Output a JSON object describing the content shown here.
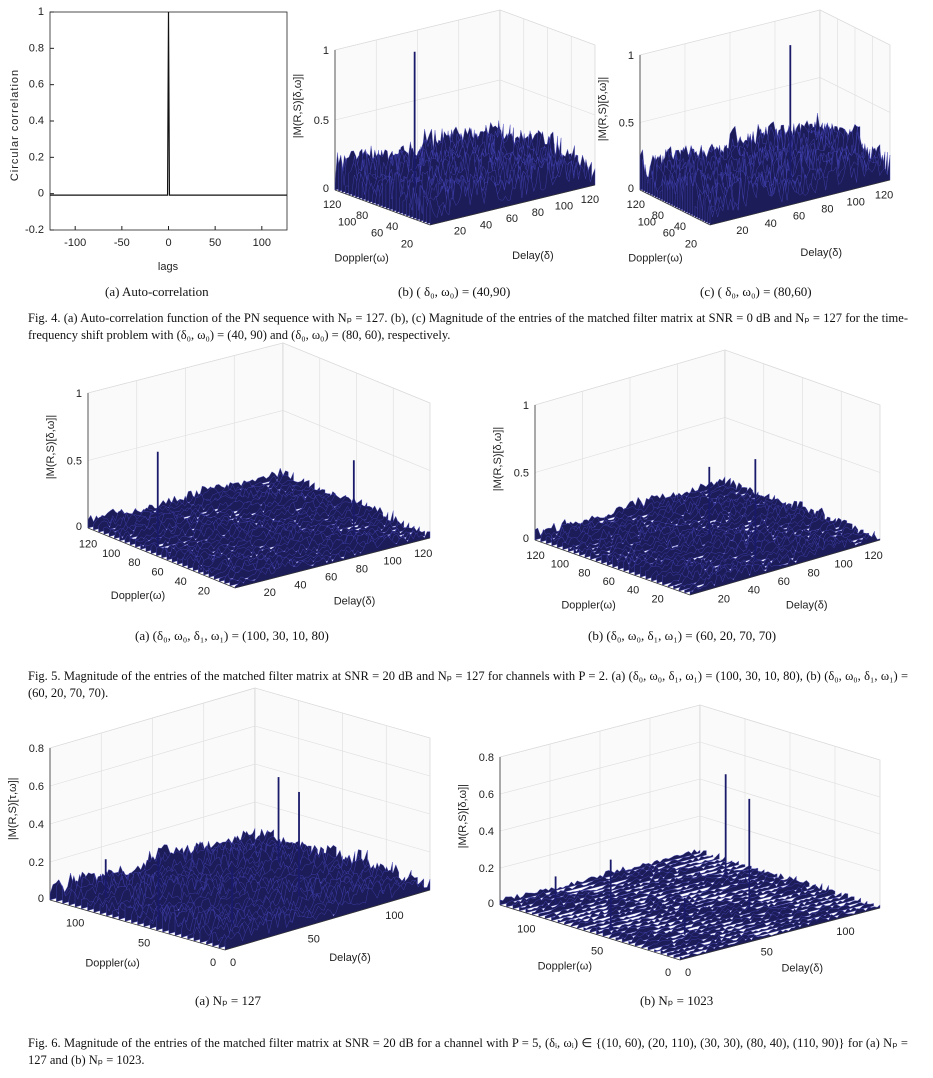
{
  "fig4": {
    "sub_a": "(a) Auto-correlation",
    "sub_b": "(b) ( δ₀, ω₀) = (40,90)",
    "sub_c": "(c) ( δ₀, ω₀) = (80,60)",
    "caption": "Fig. 4.   (a) Auto-correlation function of the PN sequence with Nₚ = 127. (b), (c) Magnitude of the entries of the matched filter matrix at SNR = 0 dB and Nₚ = 127 for the time-frequency shift problem with (δ₀, ω₀) = (40, 90) and (δ₀, ω₀) = (80, 60), respectively."
  },
  "fig5": {
    "sub_a": "(a) (δ₀, ω₀, δ₁, ω₁) = (100, 30, 10, 80)",
    "sub_b": "(b) (δ₀, ω₀, δ₁, ω₁) = (60, 20, 70, 70)",
    "caption": "Fig. 5.  Magnitude of the entries of the matched filter matrix at SNR = 20 dB and Nₚ = 127 for channels with P = 2. (a) (δ₀, ω₀, δ₁, ω₁) = (100, 30, 10, 80), (b) (δ₀, ω₀, δ₁, ω₁) = (60, 20, 70, 70)."
  },
  "fig6": {
    "sub_a": "(a) Nₚ = 127",
    "sub_b": "(b) Nₚ = 1023",
    "caption": "Fig. 6.     Magnitude of the entries of the matched filter matrix at SNR = 20 dB for a channel with P = 5, (δᵢ, ωᵢ) ∈ {(10, 60), (20, 110), (30, 30), (80, 40), (110, 90)} for (a) Nₚ = 127 and (b) Nₚ = 1023."
  },
  "chart_data": [
    {
      "id": "fig4a",
      "type": "line",
      "xlabel": "lags",
      "ylabel": "Circular correlation",
      "xlim": [
        -127,
        127
      ],
      "ylim": [
        -0.2,
        1
      ],
      "xticks": [
        "-100",
        "-50",
        "0",
        "50",
        "100"
      ],
      "xtick_values": [
        -100,
        -50,
        0,
        50,
        100
      ],
      "yticks": [
        "1",
        "0.8",
        "0.6",
        "0.4",
        "0.2",
        "0",
        "-0.2"
      ],
      "ytick_values": [
        1,
        0.8,
        0.6,
        0.4,
        0.2,
        0,
        -0.2
      ],
      "x": [
        -127,
        -1,
        0,
        1,
        127
      ],
      "y": [
        -0.008,
        -0.008,
        1,
        -0.008,
        -0.008
      ]
    },
    {
      "id": "fig4b",
      "type": "surface",
      "xlabel": "Delay(δ)",
      "ylabel": "Doppler(ω)",
      "zlabel": "|M(R,S)[δ,ω]|",
      "zlim": [
        0,
        1
      ],
      "noise_level": 0.3,
      "delay_ticks": [
        "20",
        "40",
        "60",
        "80",
        "100",
        "120"
      ],
      "doppler_ticks": [
        "120",
        "100",
        "80",
        "60",
        "40",
        "20"
      ],
      "z_ticks": [
        "1",
        "0.5",
        "0"
      ],
      "peaks": [
        {
          "delay": 40,
          "doppler": 90,
          "value": 0.97
        }
      ]
    },
    {
      "id": "fig4c",
      "type": "surface",
      "xlabel": "Delay(δ)",
      "ylabel": "Doppler(ω)",
      "zlabel": "|M(R,S)[δ,ω]|",
      "zlim": [
        0,
        1
      ],
      "noise_level": 0.32,
      "delay_ticks": [
        "20",
        "40",
        "60",
        "80",
        "100",
        "120"
      ],
      "doppler_ticks": [
        "120",
        "100",
        "80",
        "60",
        "40",
        "20"
      ],
      "z_ticks": [
        "1",
        "0.5",
        "0"
      ],
      "peaks": [
        {
          "delay": 80,
          "doppler": 60,
          "value": 1.0
        }
      ]
    },
    {
      "id": "fig5a",
      "type": "surface",
      "xlabel": "Delay(δ)",
      "ylabel": "Doppler(ω)",
      "zlabel": "|M(R,S)[δ,ω]|",
      "zlim": [
        0,
        1
      ],
      "noise_level": 0.1,
      "delay_ticks": [
        "20",
        "40",
        "60",
        "80",
        "100",
        "120"
      ],
      "doppler_ticks": [
        "120",
        "100",
        "80",
        "60",
        "40",
        "20"
      ],
      "z_ticks": [
        "1",
        "0.5",
        "0"
      ],
      "peaks": [
        {
          "delay": 100,
          "doppler": 30,
          "value": 0.55
        },
        {
          "delay": 10,
          "doppler": 80,
          "value": 0.7
        }
      ]
    },
    {
      "id": "fig5b",
      "type": "surface",
      "xlabel": "Delay(δ)",
      "ylabel": "Doppler(ω)",
      "zlabel": "|M(R,S)[δ,ω]|",
      "zlim": [
        0,
        1
      ],
      "noise_level": 0.1,
      "delay_ticks": [
        "20",
        "40",
        "60",
        "80",
        "100",
        "120"
      ],
      "doppler_ticks": [
        "120",
        "100",
        "80",
        "60",
        "40",
        "20"
      ],
      "z_ticks": [
        "1",
        "0.5",
        "0"
      ],
      "peaks": [
        {
          "delay": 60,
          "doppler": 20,
          "value": 0.75
        },
        {
          "delay": 70,
          "doppler": 70,
          "value": 0.5
        }
      ]
    },
    {
      "id": "fig6a",
      "type": "surface",
      "xlabel": "Delay(δ)",
      "ylabel": "Doppler(ω)",
      "zlabel": "|M(R,S)[τ,ω]|",
      "zlim": [
        0,
        0.8
      ],
      "noise_level": 0.12,
      "delay_ticks": [
        "0",
        "50",
        "100"
      ],
      "doppler_ticks": [
        "100",
        "50",
        "0"
      ],
      "z_ticks": [
        "0.8",
        "0.6",
        "0.4",
        "0.2",
        "0"
      ],
      "peaks": [
        {
          "delay": 10,
          "doppler": 60,
          "value": 0.35
        },
        {
          "delay": 20,
          "doppler": 110,
          "value": 0.2
        },
        {
          "delay": 30,
          "doppler": 30,
          "value": 0.3
        },
        {
          "delay": 80,
          "doppler": 40,
          "value": 0.55
        },
        {
          "delay": 110,
          "doppler": 90,
          "value": 0.45
        }
      ]
    },
    {
      "id": "fig6b",
      "type": "surface",
      "xlabel": "Delay(δ)",
      "ylabel": "Doppler(ω)",
      "zlabel": "|M(R,S)[δ,ω]|",
      "zlim": [
        0,
        0.8
      ],
      "noise_level": 0.04,
      "delay_ticks": [
        "0",
        "50",
        "100"
      ],
      "doppler_ticks": [
        "100",
        "50",
        "0"
      ],
      "z_ticks": [
        "0.8",
        "0.6",
        "0.4",
        "0.2",
        "0"
      ],
      "peaks": [
        {
          "delay": 10,
          "doppler": 60,
          "value": 0.38
        },
        {
          "delay": 20,
          "doppler": 110,
          "value": 0.15
        },
        {
          "delay": 30,
          "doppler": 30,
          "value": 0.2
        },
        {
          "delay": 80,
          "doppler": 40,
          "value": 0.6
        },
        {
          "delay": 110,
          "doppler": 90,
          "value": 0.55
        }
      ]
    }
  ]
}
